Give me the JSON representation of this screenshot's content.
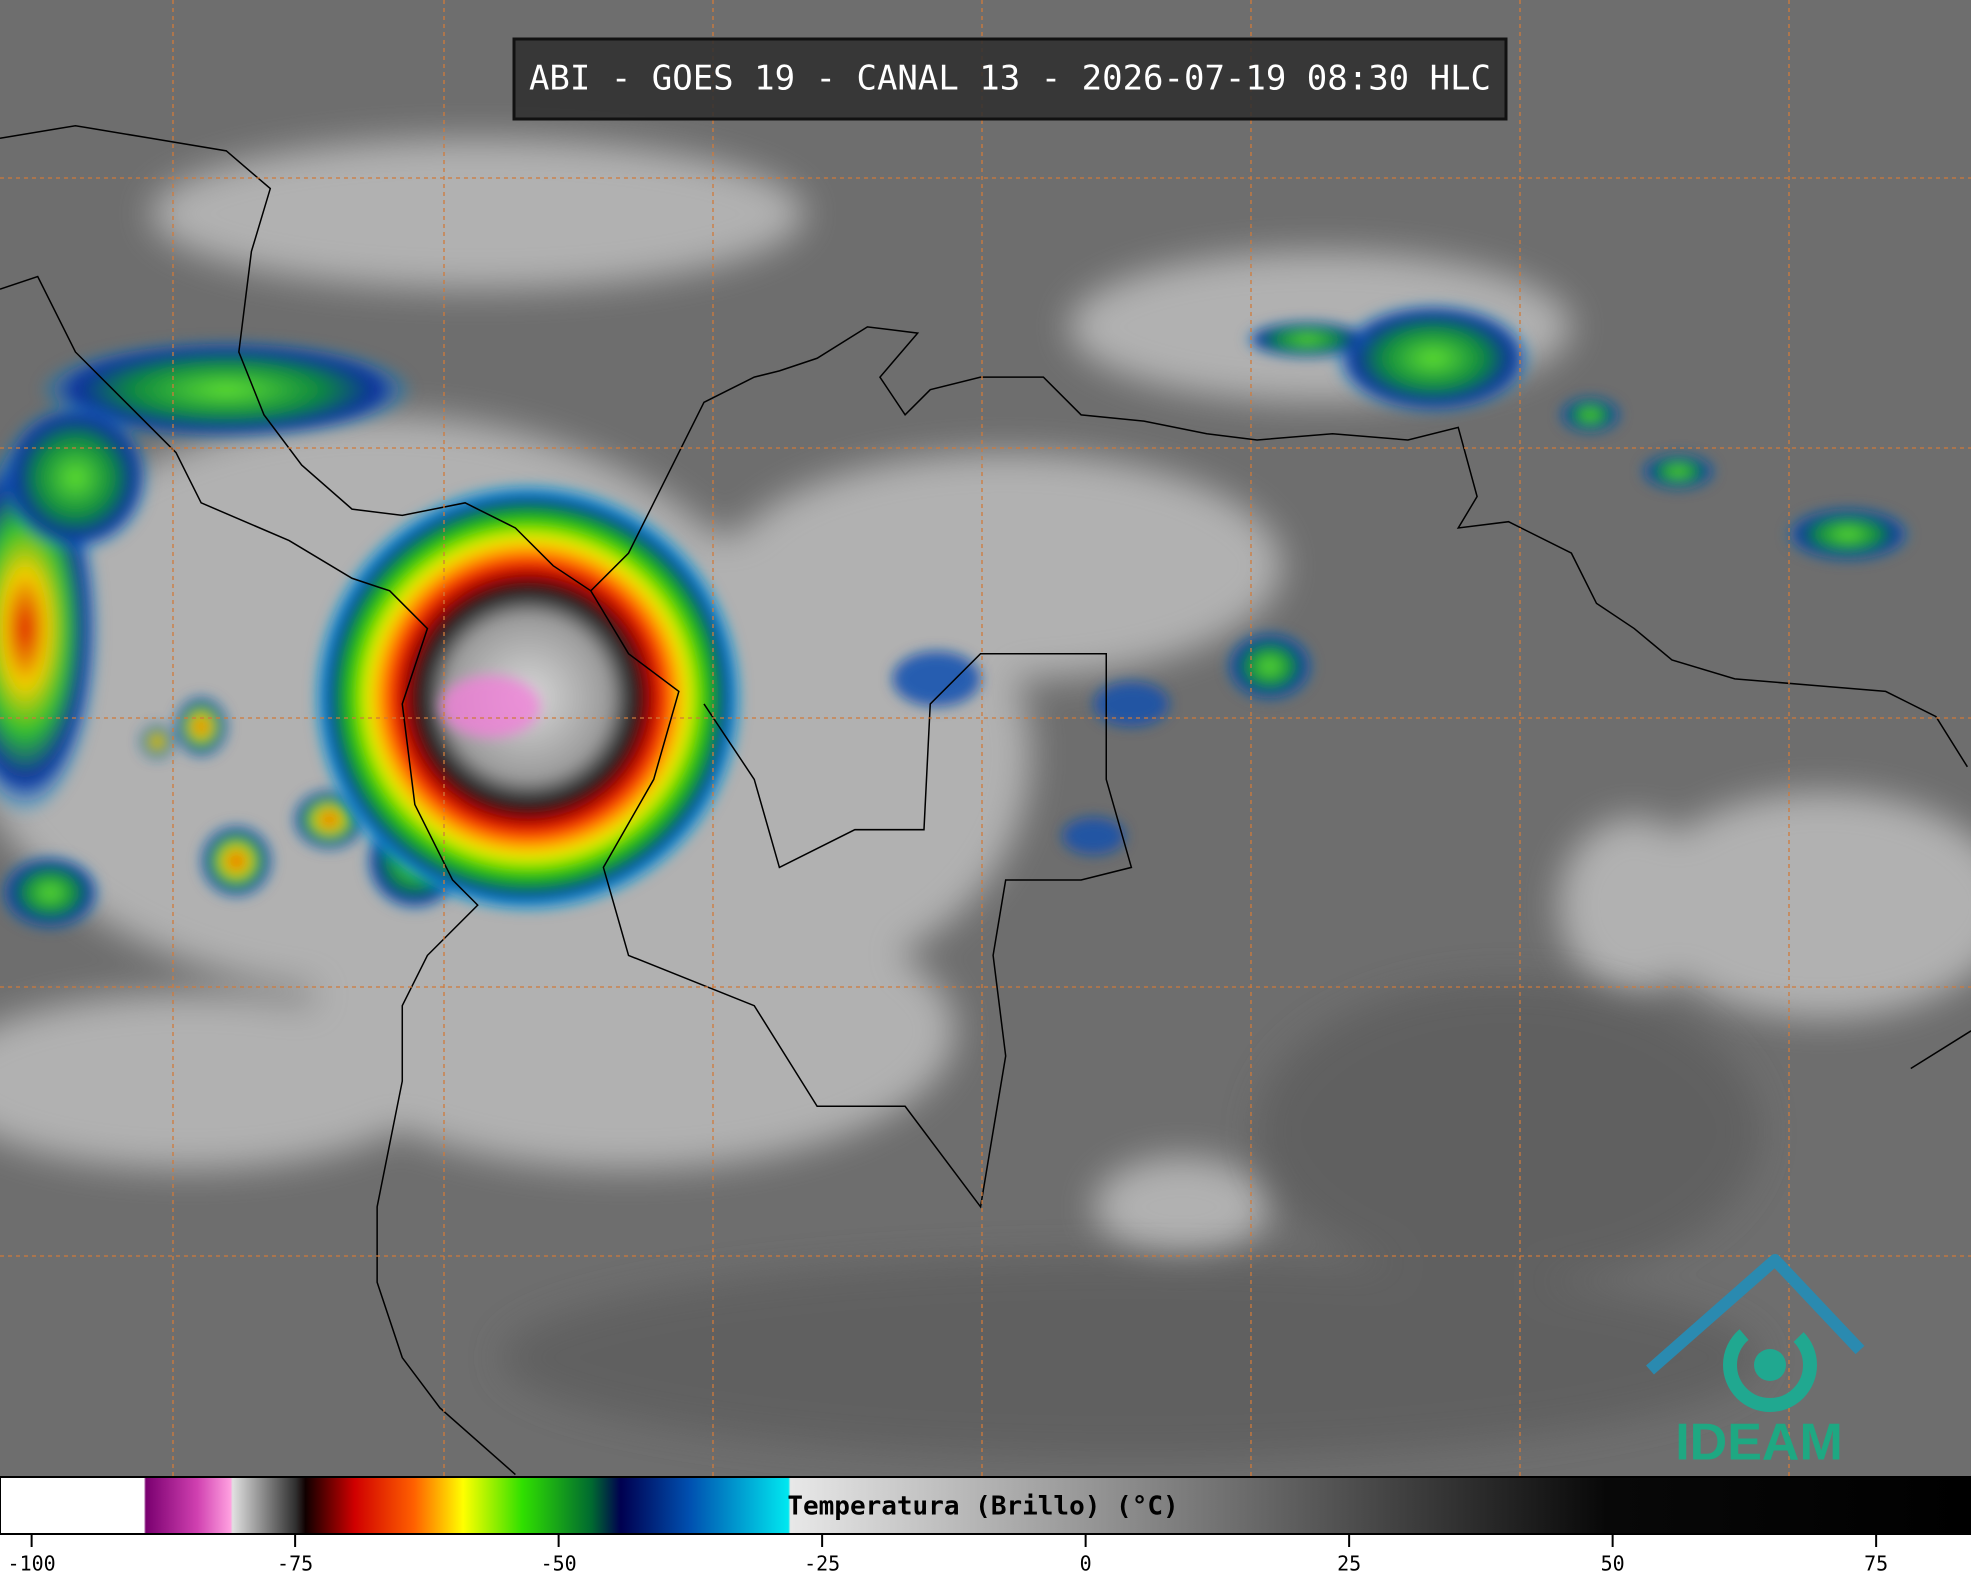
{
  "header": {
    "title": "ABI - GOES 19 - CANAL 13 - 2026-07-19 08:30 HLC"
  },
  "colorbar": {
    "label": "Temperatura (Brillo) (°C)",
    "lim": [
      -103,
      84
    ],
    "ticks": [
      -100,
      -75,
      -50,
      -25,
      0,
      25,
      50,
      75
    ]
  },
  "logo": {
    "text": "IDEAM"
  }
}
